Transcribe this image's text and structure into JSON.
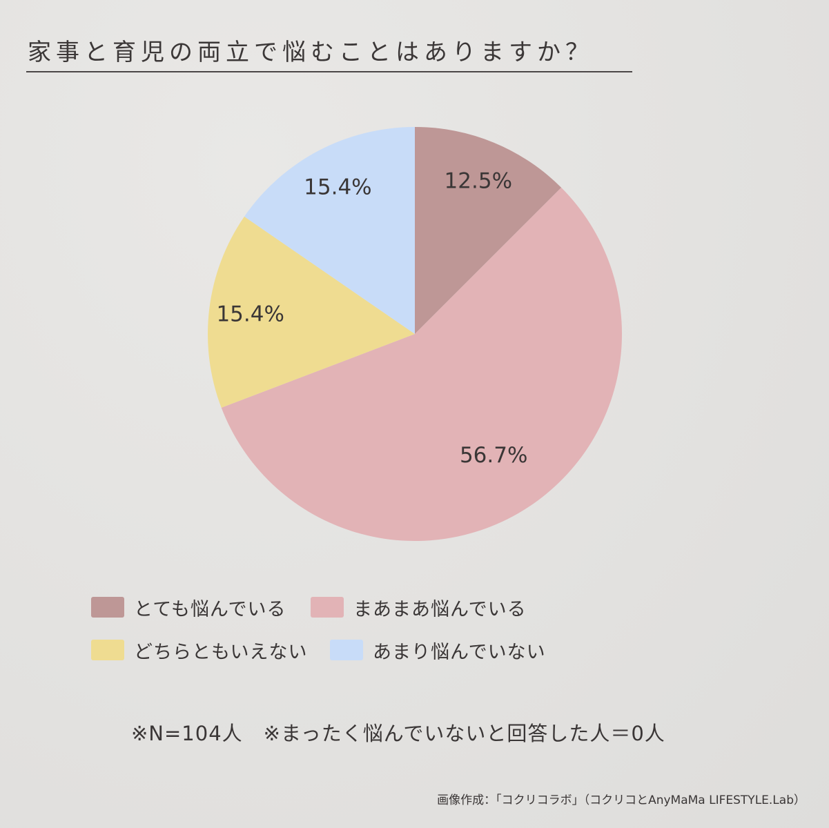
{
  "title": "家事と育児の両立で悩むことはありますか？",
  "chart_data": {
    "type": "pie",
    "categories": [
      "とても悩んでいる",
      "まあまあ悩んでいる",
      "どちらともいえない",
      "あまり悩んでいない"
    ],
    "values": [
      12.5,
      56.7,
      15.4,
      15.4
    ],
    "labels": [
      "12.5%",
      "56.7%",
      "15.4%",
      "15.4%"
    ],
    "colors": [
      "#be9796",
      "#e2b3b6",
      "#efdc91",
      "#c8dcf8"
    ],
    "start": "12 o'clock",
    "direction": "clockwise",
    "legend_position": "bottom"
  },
  "legend": [
    {
      "label": "とても悩んでいる",
      "color": "#be9796"
    },
    {
      "label": "まあまあ悩んでいる",
      "color": "#e2b3b6"
    },
    {
      "label": "どちらともいえない",
      "color": "#efdc91"
    },
    {
      "label": "あまり悩んでいない",
      "color": "#c8dcf8"
    }
  ],
  "footnote": "※N=104人　※まったく悩んでいないと回答した人＝0人",
  "credit": "画像作成：「コクリコラボ」（コクリコとAnyMaMa LIFESTYLE.Lab）"
}
